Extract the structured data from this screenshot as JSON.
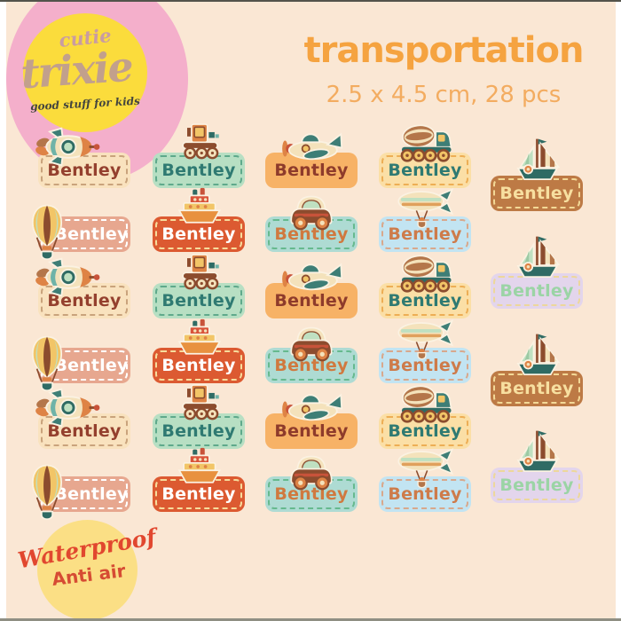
{
  "background": "#FAE7D4",
  "frame": {
    "side_strip_color": "#FFFFFF",
    "top_line_color": "#53534B",
    "bottom_line_color": "#8F8F83"
  },
  "logo": {
    "circle_outer_color": "#F4AFCB",
    "circle_inner_color": "#FBDC3C",
    "line1": "cutie",
    "line1_color": "#C99CA2",
    "line2": "trixie",
    "line2_color": "#C2A08C",
    "tagline": "good stuff for kids",
    "tagline_color": "#45463E"
  },
  "header": {
    "title": "transportation",
    "title_color": "#F5A340",
    "subtitle": "2.5 x 4.5 cm, 28 pcs",
    "subtitle_color": "#F3AC60"
  },
  "stamp": {
    "circle_color": "#FBDF85",
    "line1": "Waterproof",
    "line1_color": "#E1472F",
    "line2": "Anti air",
    "line2_color": "#D64B33"
  },
  "labels": {
    "name_text": "Bentley",
    "count": 28,
    "variants": {
      "rocket-cream": {
        "icon": "rocket-icon",
        "bg": "#F9E2BE",
        "border": "#C9A37C",
        "text_color": "#94402E"
      },
      "train-mint": {
        "icon": "train-icon",
        "bg": "#B7DFC3",
        "border": "#5FA98B",
        "text_color": "#2F7A72"
      },
      "plane-orange": {
        "icon": "plane-icon",
        "bg": "#F7B266",
        "border": "transparent",
        "text_color": "#8E3B2B"
      },
      "truck-yellow": {
        "icon": "truck-icon",
        "bg": "#FBDFA6",
        "border": "#EDAE55",
        "text_color": "#2F7A72"
      },
      "sail-brown": {
        "icon": "sailboat-icon",
        "bg": "#BD7A45",
        "border": "#F3D896",
        "text_color": "#F7DFA0"
      },
      "sail-lavender": {
        "icon": "sailboat-icon",
        "bg": "#E3D5EC",
        "border": "#EDD79B",
        "text_color": "#9BD4A5"
      },
      "balloon-salmon": {
        "icon": "hot-air-balloon-icon",
        "bg": "#E7A78F",
        "border": "#FFFFFF",
        "text_color": "#FFFFFF"
      },
      "ship-red": {
        "icon": "ship-icon",
        "bg": "#DC5A31",
        "border": "#F6DC9C",
        "text_color": "#FFFFFF"
      },
      "car-teal": {
        "icon": "car-icon",
        "bg": "#AEDBD3",
        "border": "#66B98E",
        "text_color": "#D0793F"
      },
      "blimp-blue": {
        "icon": "blimp-icon",
        "bg": "#C2E4F2",
        "border": "#D8A88C",
        "text_color": "#CE7B4A"
      }
    },
    "grid_rows": [
      [
        "rocket-cream",
        "train-mint",
        "plane-orange",
        "truck-yellow"
      ],
      [
        "balloon-salmon",
        "ship-red",
        "car-teal",
        "blimp-blue"
      ],
      [
        "rocket-cream",
        "train-mint",
        "plane-orange",
        "truck-yellow"
      ],
      [
        "balloon-salmon",
        "ship-red",
        "car-teal",
        "blimp-blue"
      ],
      [
        "rocket-cream",
        "train-mint",
        "plane-orange",
        "truck-yellow"
      ],
      [
        "balloon-salmon",
        "ship-red",
        "car-teal",
        "blimp-blue"
      ]
    ],
    "sail_column": [
      "sail-brown",
      "sail-lavender",
      "sail-brown",
      "sail-lavender"
    ]
  }
}
